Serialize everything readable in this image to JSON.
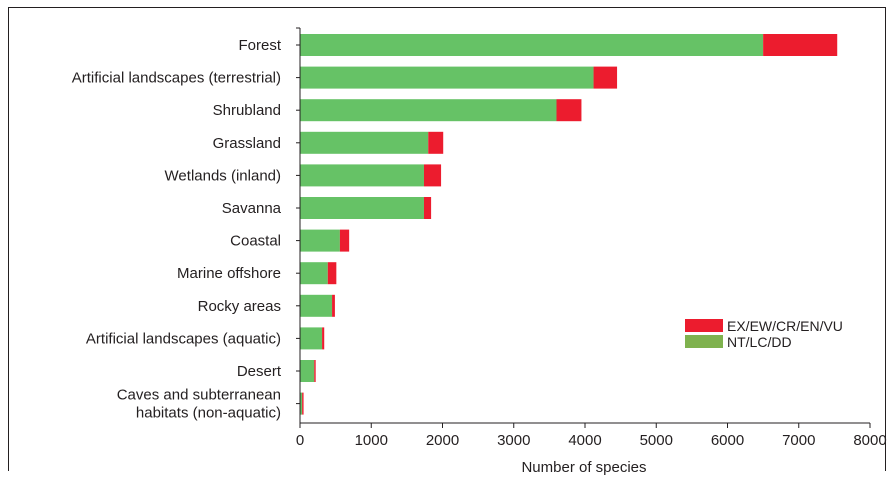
{
  "chart_data": {
    "type": "bar",
    "orientation": "horizontal",
    "stacked": true,
    "title": "",
    "xlabel": "Number of species",
    "ylabel": "",
    "xlim": [
      0,
      8000
    ],
    "xticks": [
      0,
      1000,
      2000,
      3000,
      4000,
      5000,
      6000,
      7000,
      8000
    ],
    "grid": false,
    "legend_position": "right",
    "categories": [
      [
        "Forest"
      ],
      [
        "Artificial landscapes (terrestrial)"
      ],
      [
        "Shrubland"
      ],
      [
        "Grassland"
      ],
      [
        "Wetlands (inland)"
      ],
      [
        "Savanna"
      ],
      [
        "Coastal"
      ],
      [
        "Marine offshore"
      ],
      [
        "Rocky areas"
      ],
      [
        "Artificial landscapes (aquatic)"
      ],
      [
        "Desert"
      ],
      [
        "Caves and subterranean",
        "habitats (non-aquatic)"
      ]
    ],
    "series": [
      {
        "name": "NT/LC/DD",
        "color": "#66c266",
        "legend_color": "#7fb24e",
        "values": [
          6500,
          4120,
          3600,
          1800,
          1740,
          1740,
          560,
          390,
          450,
          310,
          200,
          30
        ]
      },
      {
        "name": "EX/EW/CR/EN/VU",
        "color": "#ec1c2e",
        "legend_color": "#ec1c2e",
        "values": [
          1040,
          330,
          350,
          210,
          240,
          100,
          130,
          120,
          40,
          30,
          20,
          20
        ]
      }
    ]
  }
}
